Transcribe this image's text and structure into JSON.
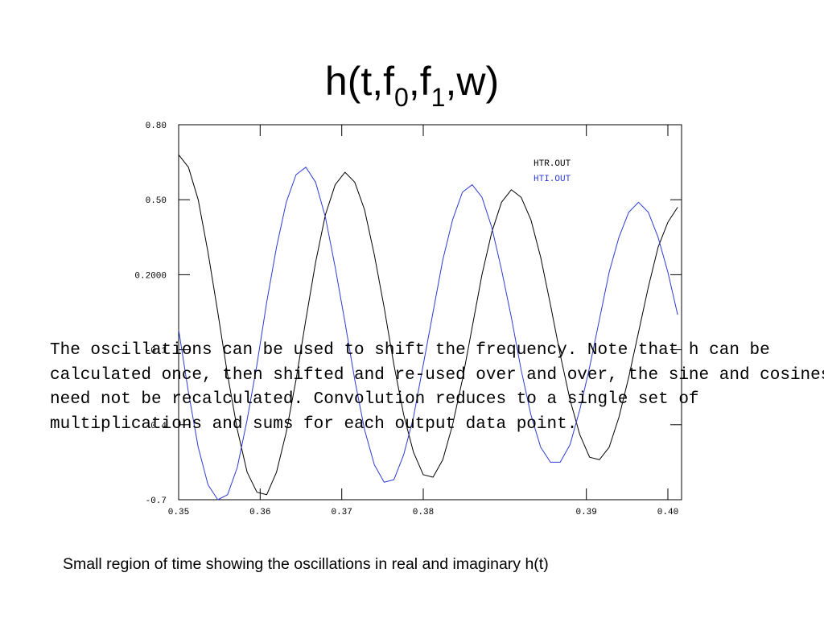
{
  "slide": {
    "title_parts": [
      "h(t,f",
      "0",
      ",f",
      "1",
      ",w)"
    ],
    "body_lines": [
      "The oscillations can be used to shift the frequency.  Note that h can be",
      "calculated once, then shifted and re-used over and over, the sine and cosines",
      "need not be recalculated.  Convolution reduces to a single set of",
      "multiplications and sums for each output data point."
    ],
    "caption": "Small region of time showing the oscillations in real and imaginary h(t)"
  },
  "chart_data": {
    "type": "line",
    "x": [
      0.35,
      0.351,
      0.352,
      0.353,
      0.354,
      0.355,
      0.356,
      0.357,
      0.358,
      0.359,
      0.36,
      0.361,
      0.362,
      0.363,
      0.364,
      0.365,
      0.366,
      0.367,
      0.368,
      0.369,
      0.37,
      0.371,
      0.372,
      0.373,
      0.374,
      0.375,
      0.376,
      0.377,
      0.378,
      0.379,
      0.38,
      0.381,
      0.382,
      0.383,
      0.384,
      0.385,
      0.386,
      0.387,
      0.388,
      0.389,
      0.39,
      0.391,
      0.392,
      0.393,
      0.394,
      0.395,
      0.396,
      0.397,
      0.398,
      0.399,
      0.4,
      0.401
    ],
    "series": [
      {
        "name": "HTR.OUT",
        "color": "#000000",
        "values": [
          0.68,
          0.63,
          0.5,
          0.29,
          0.05,
          -0.2,
          -0.42,
          -0.59,
          -0.67,
          -0.68,
          -0.59,
          -0.43,
          -0.22,
          0.02,
          0.25,
          0.44,
          0.56,
          0.61,
          0.57,
          0.46,
          0.28,
          0.07,
          -0.16,
          -0.36,
          -0.51,
          -0.6,
          -0.61,
          -0.54,
          -0.4,
          -0.22,
          -0.01,
          0.2,
          0.37,
          0.49,
          0.54,
          0.51,
          0.42,
          0.27,
          0.08,
          -0.12,
          -0.3,
          -0.44,
          -0.53,
          -0.54,
          -0.49,
          -0.37,
          -0.21,
          -0.03,
          0.15,
          0.31,
          0.41,
          0.47
        ]
      },
      {
        "name": "HTI.OUT",
        "color": "#2b3bd6",
        "values": [
          -0.02,
          -0.27,
          -0.49,
          -0.64,
          -0.7,
          -0.68,
          -0.57,
          -0.38,
          -0.16,
          0.09,
          0.31,
          0.49,
          0.6,
          0.63,
          0.57,
          0.43,
          0.23,
          0.01,
          -0.22,
          -0.42,
          -0.56,
          -0.63,
          -0.62,
          -0.52,
          -0.37,
          -0.16,
          0.05,
          0.26,
          0.42,
          0.53,
          0.56,
          0.51,
          0.39,
          0.22,
          0.03,
          -0.18,
          -0.36,
          -0.49,
          -0.55,
          -0.55,
          -0.48,
          -0.34,
          -0.17,
          0.02,
          0.21,
          0.35,
          0.45,
          0.49,
          0.45,
          0.35,
          0.21,
          0.04
        ]
      }
    ],
    "xlim": [
      0.35,
      0.4014
    ],
    "ylim": [
      -0.7,
      0.8
    ],
    "xticks": [
      0.35,
      {
        "value": 0.35833,
        "label": "0.36"
      },
      {
        "value": 0.36667,
        "label": "0.37"
      },
      {
        "value": 0.375,
        "label": "0.38"
      },
      {
        "value": 0.39167,
        "label": "0.39"
      },
      {
        "value": 0.4,
        "label": "0.40"
      }
    ],
    "yticks": [
      -0.7,
      -0.4,
      -0.1,
      {
        "value": 0.2,
        "label": "0.2000"
      },
      {
        "value": 0.5,
        "label": "0.50"
      },
      {
        "value": 0.8,
        "label": "0.80"
      }
    ]
  }
}
